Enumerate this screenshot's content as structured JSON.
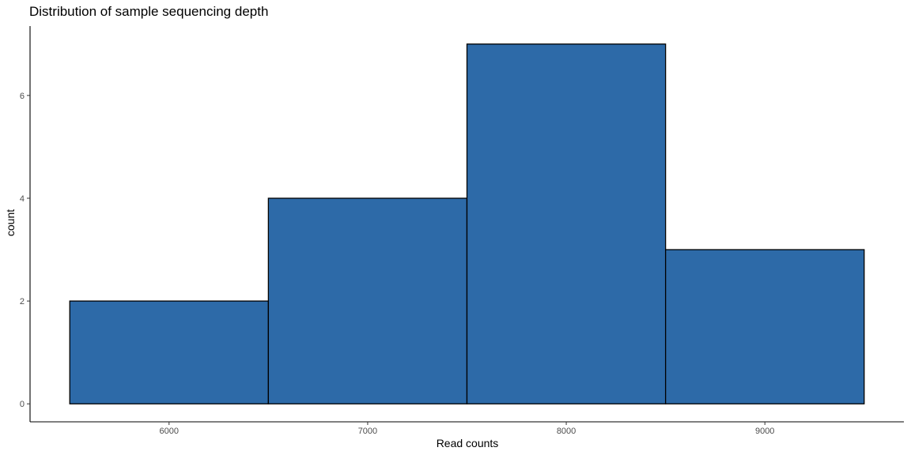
{
  "chart_data": {
    "type": "bar",
    "title": "Distribution of sample sequencing depth",
    "xlabel": "Read counts",
    "ylabel": "count",
    "bins": [
      {
        "x_start": 5500,
        "x_end": 6500,
        "count": 2
      },
      {
        "x_start": 6500,
        "x_end": 7500,
        "count": 4
      },
      {
        "x_start": 7500,
        "x_end": 8500,
        "count": 7
      },
      {
        "x_start": 8500,
        "x_end": 9500,
        "count": 3
      }
    ],
    "x_ticks": [
      6000,
      7000,
      8000,
      9000
    ],
    "y_ticks": [
      0,
      2,
      4,
      6
    ],
    "xlim": [
      5300,
      9700
    ],
    "ylim": [
      -0.35,
      7.35
    ],
    "grid": false,
    "bar_fill": "#2d6aa8",
    "bar_outline": "#000000"
  }
}
